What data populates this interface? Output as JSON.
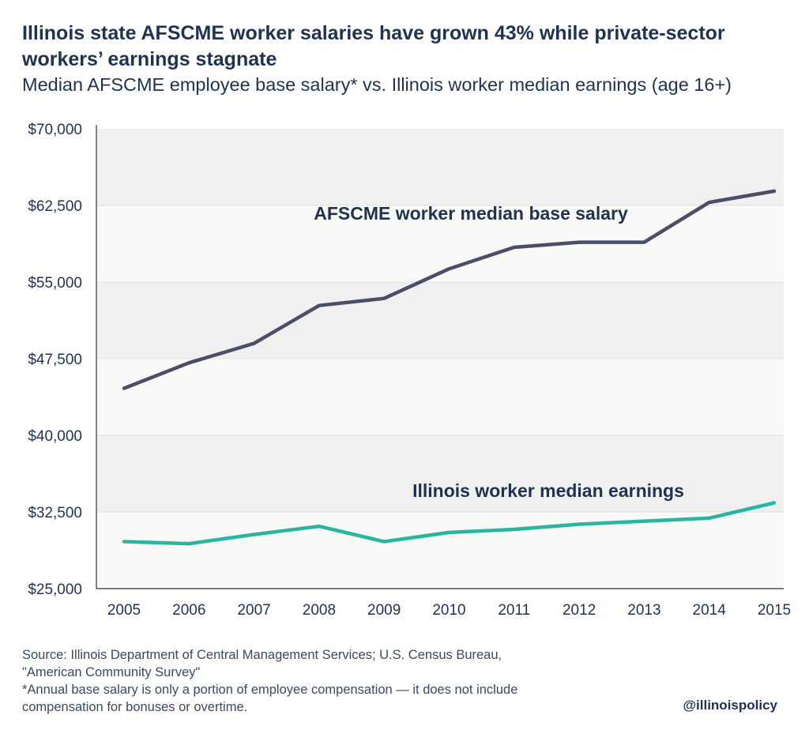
{
  "header": {
    "title": "Illinois state AFSCME worker salaries have grown 43% while private-sector workers’ earnings stagnate",
    "subtitle": "Median AFSCME employee base salary* vs. Illinois worker median earnings (age 16+)"
  },
  "chart_data": {
    "type": "line",
    "title": "Illinois state AFSCME worker salaries have grown 43% while private-sector workers’ earnings stagnate",
    "subtitle": "Median AFSCME employee base salary* vs. Illinois worker median earnings (age 16+)",
    "xlabel": "",
    "ylabel": "",
    "x": [
      "2005",
      "2006",
      "2007",
      "2008",
      "2009",
      "2010",
      "2011",
      "2012",
      "2013",
      "2014",
      "2015"
    ],
    "ylim": [
      25000,
      70000
    ],
    "yticks": [
      25000,
      32500,
      40000,
      47500,
      55000,
      62500,
      70000
    ],
    "ytick_labels": [
      "$25,000",
      "$32,500",
      "$40,000",
      "$47,500",
      "$55,000",
      "$62,500",
      "$70,000"
    ],
    "grid": true,
    "series": [
      {
        "name": "AFSCME worker median base salary",
        "color": "#4a4e66",
        "values": [
          44600,
          47100,
          49000,
          52700,
          53400,
          56300,
          58400,
          58900,
          58900,
          62800,
          63900
        ]
      },
      {
        "name": "Illinois worker median earnings",
        "color": "#2ab5a0",
        "values": [
          29600,
          29400,
          30300,
          31100,
          29600,
          30500,
          30800,
          31300,
          31600,
          31900,
          33400
        ]
      }
    ]
  },
  "footer": {
    "source_line1": "Source: Illinois Department of Central Management Services; U.S. Census Bureau,",
    "source_line2": "\"American Community Survey\"",
    "note_line1": "*Annual base salary is only a portion of employee compensation — it does not include",
    "note_line2": "compensation for bonuses or overtime.",
    "handle": "@illinoispolicy"
  },
  "colors": {
    "text": "#1f3350",
    "band_dark": "#f0f0f0",
    "band_light": "#f9f9f8",
    "afscme_line": "#4a4e66",
    "illinois_line": "#2ab5a0"
  }
}
